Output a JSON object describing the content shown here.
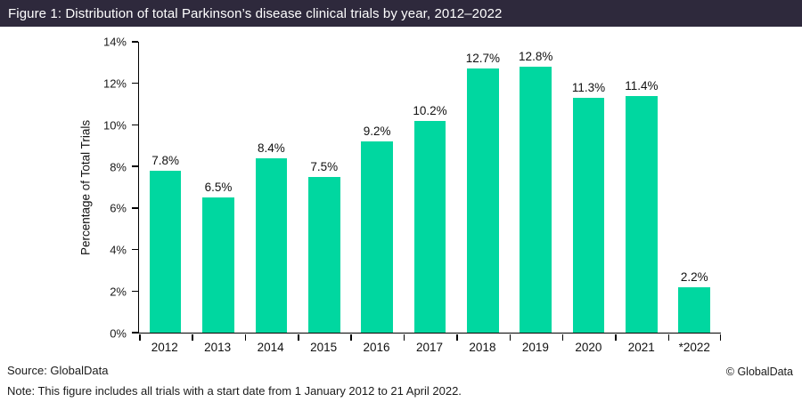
{
  "header": {
    "title": "Figure 1: Distribution of total Parkinson’s disease clinical trials by year, 2012–2022",
    "bg_color": "#2e293c",
    "text_color": "#ffffff"
  },
  "chart_data": {
    "type": "bar",
    "title": "Figure 1: Distribution of total Parkinson’s disease clinical trials by year, 2012–2022",
    "categories": [
      "2012",
      "2013",
      "2014",
      "2015",
      "2016",
      "2017",
      "2018",
      "2019",
      "2020",
      "2021",
      "*2022"
    ],
    "values": [
      7.8,
      6.5,
      8.4,
      7.5,
      9.2,
      10.2,
      12.7,
      12.8,
      11.3,
      11.4,
      2.2
    ],
    "value_labels": [
      "7.8%",
      "6.5%",
      "8.4%",
      "7.5%",
      "9.2%",
      "10.2%",
      "12.7%",
      "12.8%",
      "11.3%",
      "11.4%",
      "2.2%"
    ],
    "xlabel": "",
    "ylabel": "Percentage of Total Trials",
    "ylim": [
      0,
      14
    ],
    "yticks": [
      0,
      2,
      4,
      6,
      8,
      10,
      12,
      14
    ],
    "ytick_labels": [
      "0%",
      "2%",
      "4%",
      "6%",
      "8%",
      "10%",
      "12%",
      "14%"
    ],
    "grid": false,
    "legend": "none",
    "bar_color": "#00d7a0"
  },
  "footer": {
    "source": "Source: GlobalData",
    "note": "Note: This figure includes all trials with a start date from 1 January 2012 to 21 April 2022.",
    "copyright": "© GlobalData"
  }
}
